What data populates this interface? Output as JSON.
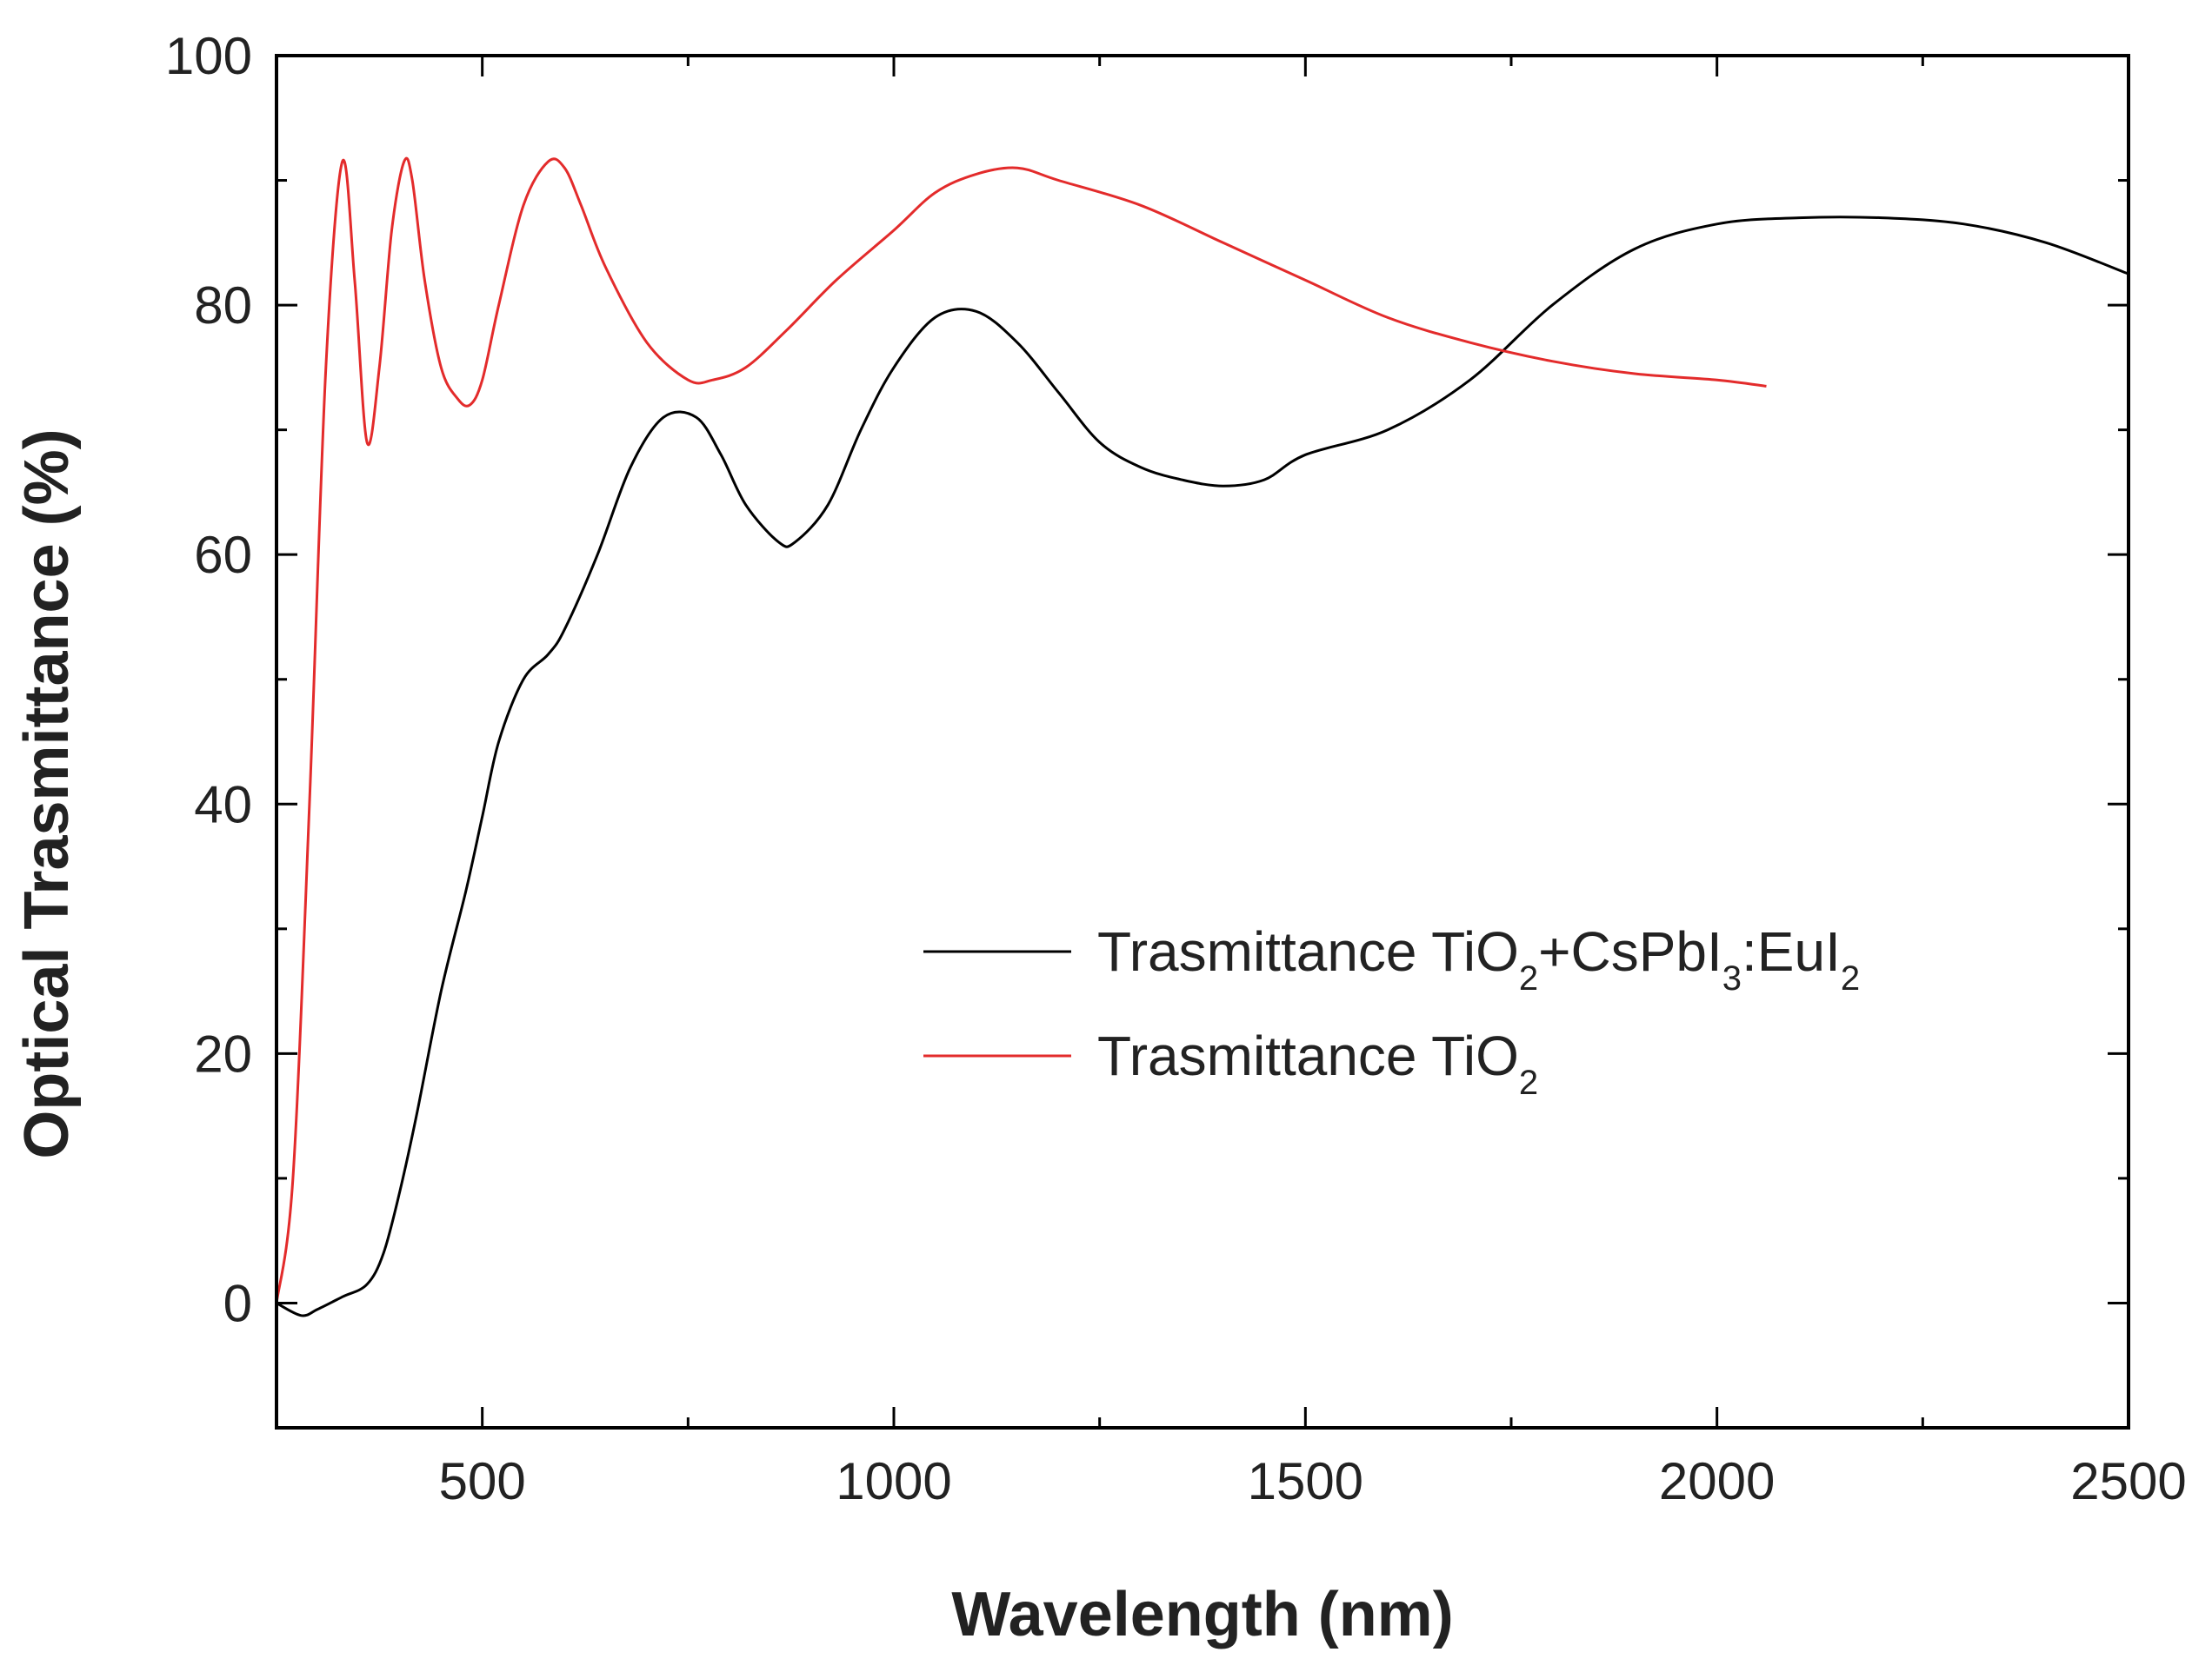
{
  "chart_data": {
    "type": "line",
    "xlabel": "Wavelength (nm)",
    "ylabel": "Optical Trasmittance (%)",
    "xlim": [
      250,
      2500
    ],
    "ylim": [
      -10,
      100
    ],
    "x_ticks": [
      500,
      1000,
      1500,
      2000,
      2500
    ],
    "y_ticks": [
      0,
      20,
      40,
      60,
      80,
      100
    ],
    "x_ticks_text": [
      "500",
      "1000",
      "1500",
      "2000",
      "2500"
    ],
    "y_ticks_text": [
      "0",
      "20",
      "40",
      "60",
      "80",
      "100"
    ],
    "grid": false,
    "legend_position": "center-right",
    "series": [
      {
        "name": "Trasmittance TiO2+CsPbI3:EuI2",
        "name_parts": {
          "a": "Trasmittance TiO",
          "sub1": "2",
          "b": "+CsPbI",
          "sub2": "3",
          "c": ":EuI",
          "sub3": "2"
        },
        "color": "#000000",
        "x": [
          250,
          280,
          300,
          330,
          360,
          380,
          400,
          420,
          450,
          480,
          500,
          520,
          550,
          580,
          600,
          640,
          680,
          720,
          760,
          790,
          820,
          860,
          880,
          920,
          960,
          1000,
          1050,
          1100,
          1150,
          1200,
          1250,
          1300,
          1350,
          1400,
          1450,
          1500,
          1600,
          1700,
          1800,
          1900,
          2000,
          2100,
          2200,
          2300,
          2400,
          2500
        ],
        "y": [
          0,
          -1,
          -0.5,
          0.5,
          1.5,
          4,
          9,
          15,
          25,
          33,
          39,
          45,
          50,
          52,
          54,
          60,
          67,
          71,
          71,
          68,
          64,
          61,
          61,
          64,
          70,
          75,
          79,
          79.5,
          77,
          73,
          69,
          67,
          66,
          65.5,
          66,
          68,
          70,
          74,
          80,
          84.5,
          86.5,
          87,
          87,
          86.5,
          85,
          82.5
        ]
      },
      {
        "name": "Trasmittance TiO2",
        "name_parts": {
          "a": "Trasmittance TiO",
          "sub1": "2"
        },
        "color": "#e32b2b",
        "x": [
          250,
          270,
          290,
          310,
          330,
          345,
          360,
          375,
          390,
          405,
          415,
          430,
          450,
          470,
          485,
          500,
          520,
          550,
          580,
          600,
          620,
          650,
          700,
          750,
          780,
          820,
          870,
          930,
          1000,
          1050,
          1100,
          1150,
          1200,
          1300,
          1400,
          1500,
          1600,
          1700,
          1800,
          1900,
          2000,
          2060
        ],
        "y": [
          0,
          10,
          40,
          75,
          91.5,
          82,
          69,
          75,
          86,
          91.5,
          90,
          82,
          75,
          72.5,
          72,
          74,
          80,
          88,
          91.5,
          91,
          88,
          83,
          77,
          74,
          74,
          75,
          78,
          82,
          86,
          89,
          90.5,
          91,
          90,
          88,
          85,
          82,
          79,
          77,
          75.5,
          74.5,
          74,
          73.5
        ]
      }
    ]
  }
}
